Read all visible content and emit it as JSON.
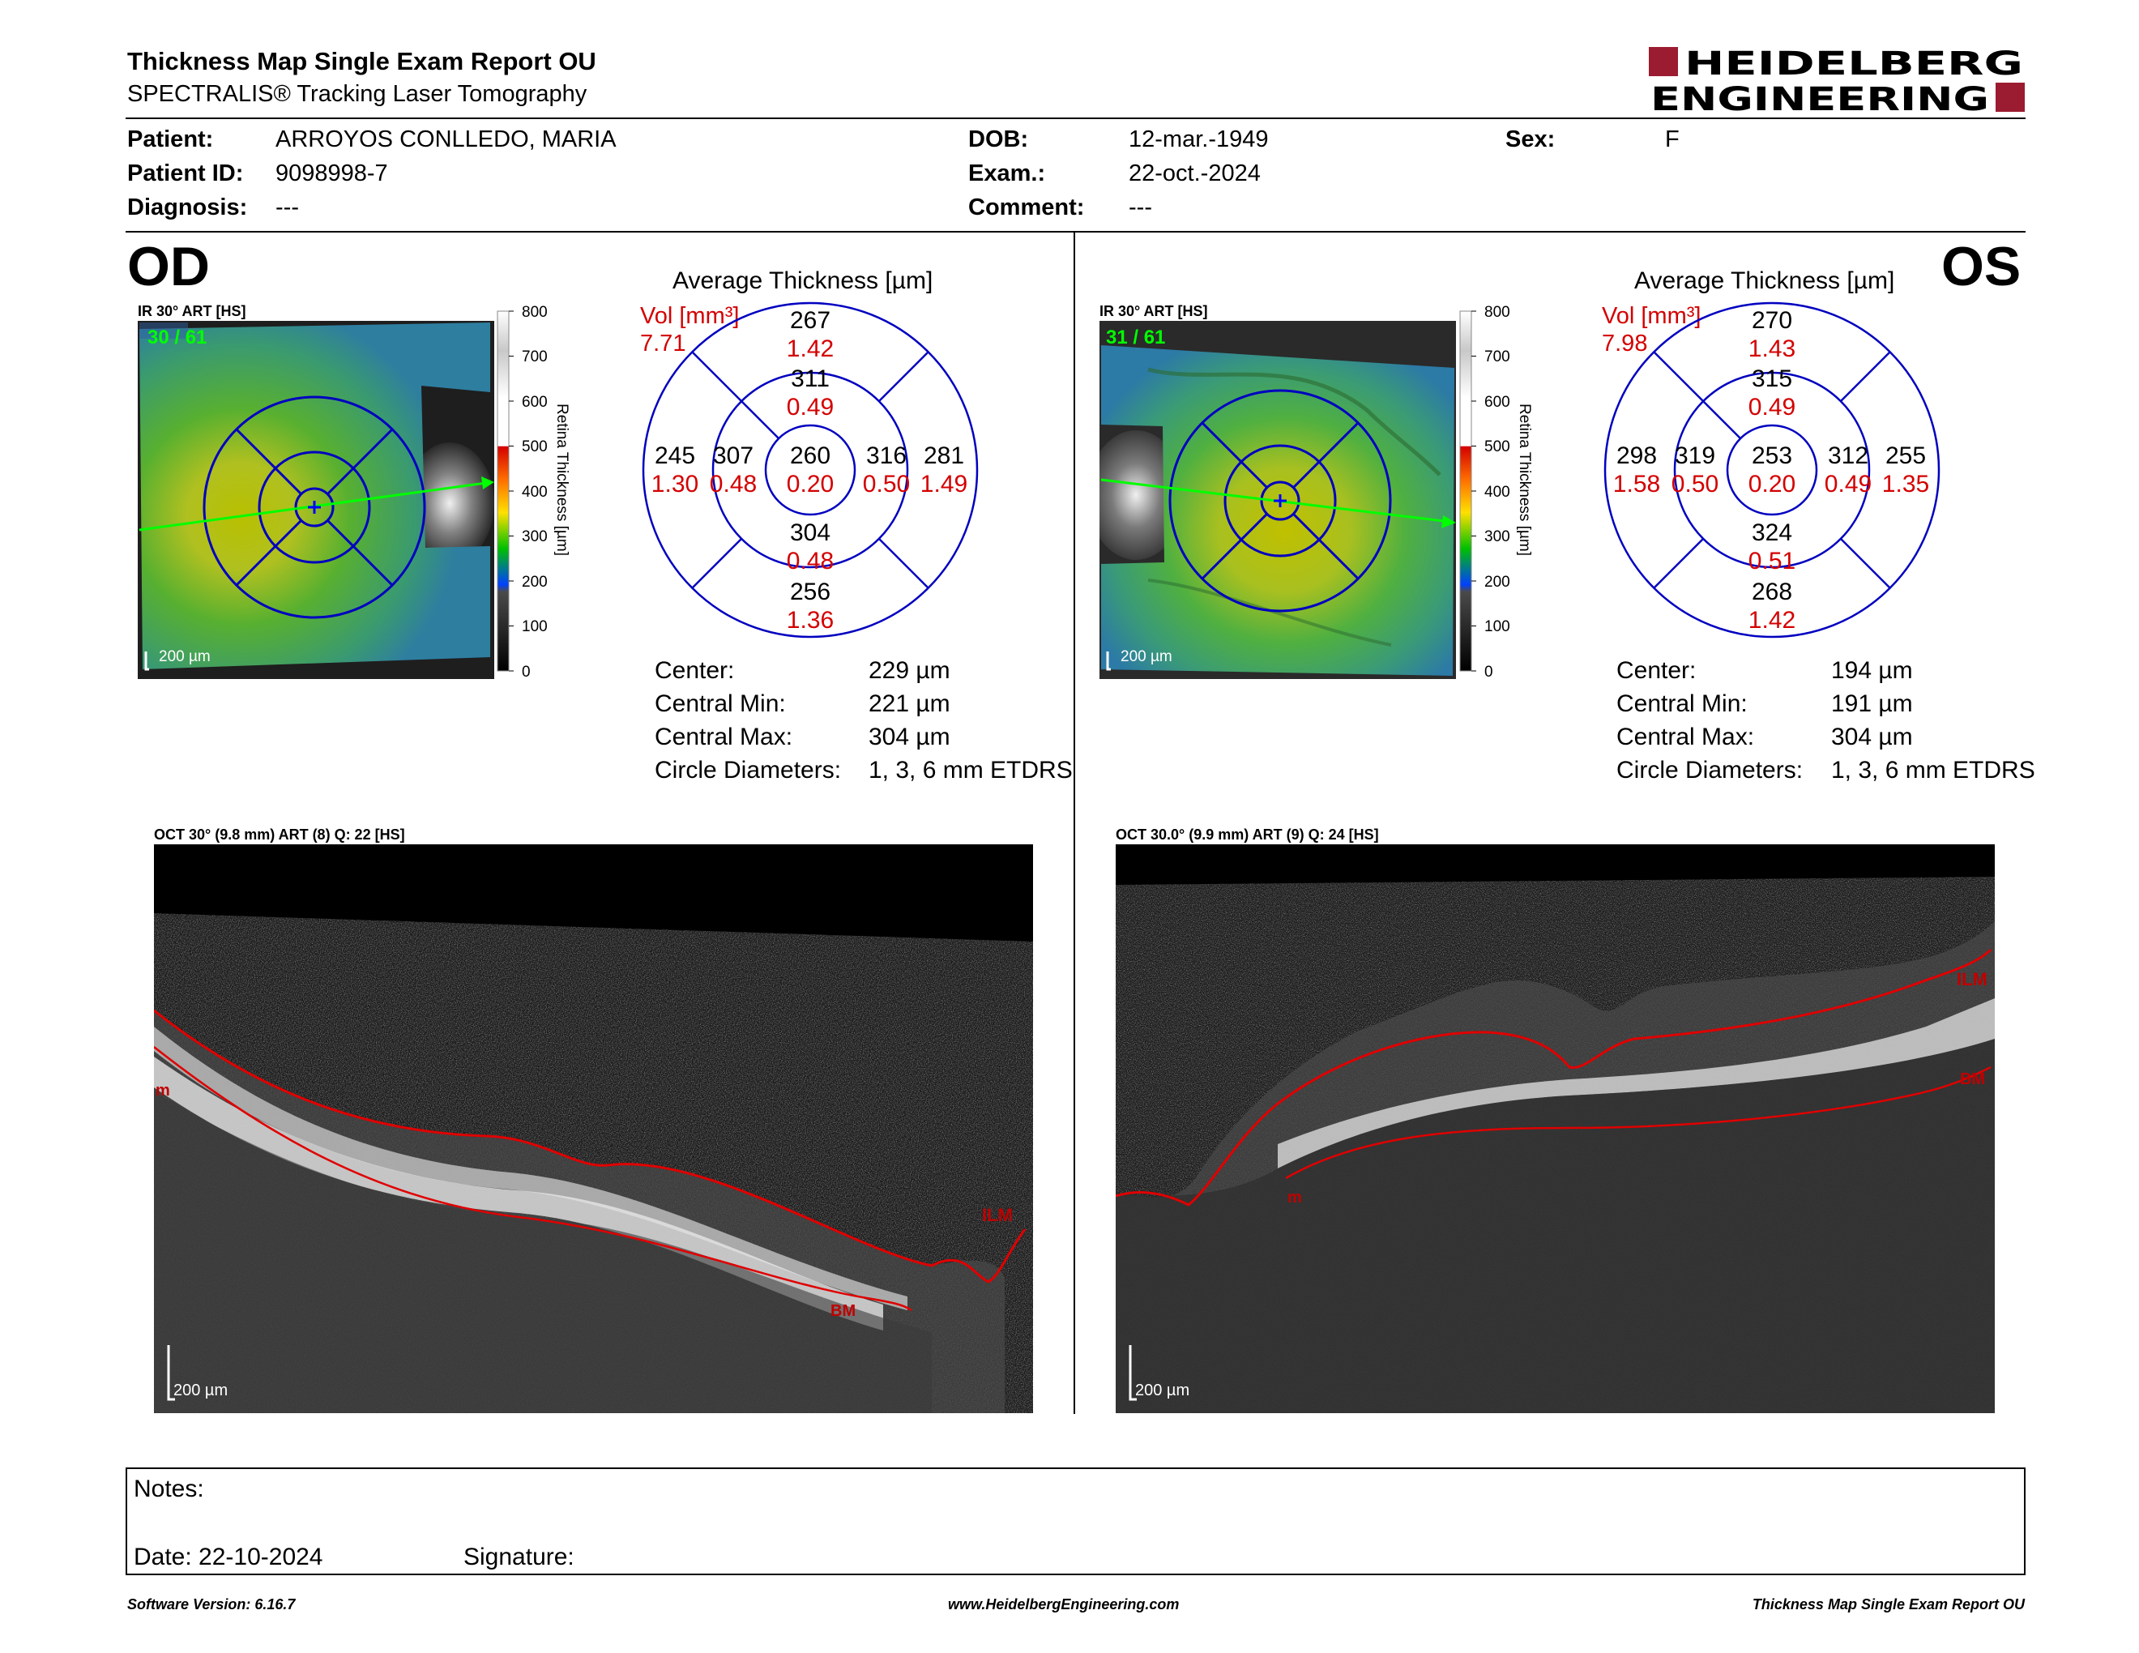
{
  "header": {
    "title": "Thickness Map Single Exam Report OU",
    "subtitle": "SPECTRALIS® Tracking Laser Tomography",
    "logo_line1": "HEIDELBERG",
    "logo_line2": "ENGINEERING"
  },
  "patient": {
    "patient_label": "Patient:",
    "patient_value": "ARROYOS CONLLEDO, MARIA",
    "id_label": "Patient ID:",
    "id_value": "9098998-7",
    "diagnosis_label": "Diagnosis:",
    "diagnosis_value": "---",
    "dob_label": "DOB:",
    "dob_value": "12-mar.-1949",
    "exam_label": "Exam.:",
    "exam_value": "22-oct.-2024",
    "comment_label": "Comment:",
    "comment_value": "---",
    "sex_label": "Sex:",
    "sex_value": "F"
  },
  "scale": {
    "ticks": [
      "800",
      "700",
      "600",
      "500",
      "400",
      "300",
      "200",
      "100",
      "0"
    ],
    "label": "Retina  Thickness [µm]",
    "colors": [
      "#ffffff",
      "#c0c0c0",
      "#ffffff",
      "#d40000",
      "#ff8000",
      "#ffe000",
      "#00c000",
      "#0040ff",
      "#404040",
      "#000000"
    ]
  },
  "od": {
    "eye": "OD",
    "ir_label": "IR 30° ART [HS]",
    "frame": "30 / 61",
    "scalebar": "200 µm",
    "avg_title": "Average Thickness [µm]",
    "vol_label": "Vol [mm³]",
    "vol_value": "7.71",
    "sectors": {
      "center": {
        "t": "260",
        "v": "0.20"
      },
      "inner_top": {
        "t": "311",
        "v": "0.49"
      },
      "inner_bottom": {
        "t": "304",
        "v": "0.48"
      },
      "inner_left": {
        "t": "307",
        "v": "0.48"
      },
      "inner_right": {
        "t": "316",
        "v": "0.50"
      },
      "outer_top": {
        "t": "267",
        "v": "1.42"
      },
      "outer_bottom": {
        "t": "256",
        "v": "1.36"
      },
      "outer_left": {
        "t": "245",
        "v": "1.30"
      },
      "outer_right": {
        "t": "281",
        "v": "1.49"
      }
    },
    "stats": [
      {
        "label": "Center:",
        "value": "229 µm"
      },
      {
        "label": "Central Min:",
        "value": "221 µm"
      },
      {
        "label": "Central Max:",
        "value": "304 µm"
      },
      {
        "label": "Circle Diameters:",
        "value": "1, 3, 6 mm ETDRS"
      }
    ],
    "oct_label": "OCT 30° (9.8 mm) ART (8) Q: 22 [HS]",
    "oct_scalebar": "200 µm",
    "layer_labels": [
      "ILM",
      "BM",
      "m"
    ]
  },
  "os": {
    "eye": "OS",
    "ir_label": "IR 30° ART [HS]",
    "frame": "31 / 61",
    "scalebar": "200 µm",
    "avg_title": "Average Thickness [µm]",
    "vol_label": "Vol [mm³]",
    "vol_value": "7.98",
    "sectors": {
      "center": {
        "t": "253",
        "v": "0.20"
      },
      "inner_top": {
        "t": "315",
        "v": "0.49"
      },
      "inner_bottom": {
        "t": "324",
        "v": "0.51"
      },
      "inner_left": {
        "t": "319",
        "v": "0.50"
      },
      "inner_right": {
        "t": "312",
        "v": "0.49"
      },
      "outer_top": {
        "t": "270",
        "v": "1.43"
      },
      "outer_bottom": {
        "t": "268",
        "v": "1.42"
      },
      "outer_left": {
        "t": "298",
        "v": "1.58"
      },
      "outer_right": {
        "t": "255",
        "v": "1.35"
      }
    },
    "stats": [
      {
        "label": "Center:",
        "value": "194 µm"
      },
      {
        "label": "Central Min:",
        "value": "191 µm"
      },
      {
        "label": "Central Max:",
        "value": "304 µm"
      },
      {
        "label": "Circle Diameters:",
        "value": "1, 3, 6 mm ETDRS"
      }
    ],
    "oct_label": "OCT 30.0° (9.9 mm) ART (9) Q: 24 [HS]",
    "oct_scalebar": "200 µm",
    "layer_labels": [
      "ILM",
      "BM",
      "m"
    ]
  },
  "notes": {
    "notes_label": "Notes:",
    "date_label": "Date: 22-10-2024",
    "signature_label": "Signature:"
  },
  "footer": {
    "left": "Software Version: 6.16.7",
    "center": "www.HeidelbergEngineering.com",
    "right": "Thickness Map Single Exam Report OU"
  },
  "colors": {
    "accent_red": "#d40000",
    "logo_red": "#9b1b30",
    "grid_blue": "#0000c0",
    "scan_green": "#00ff00"
  }
}
